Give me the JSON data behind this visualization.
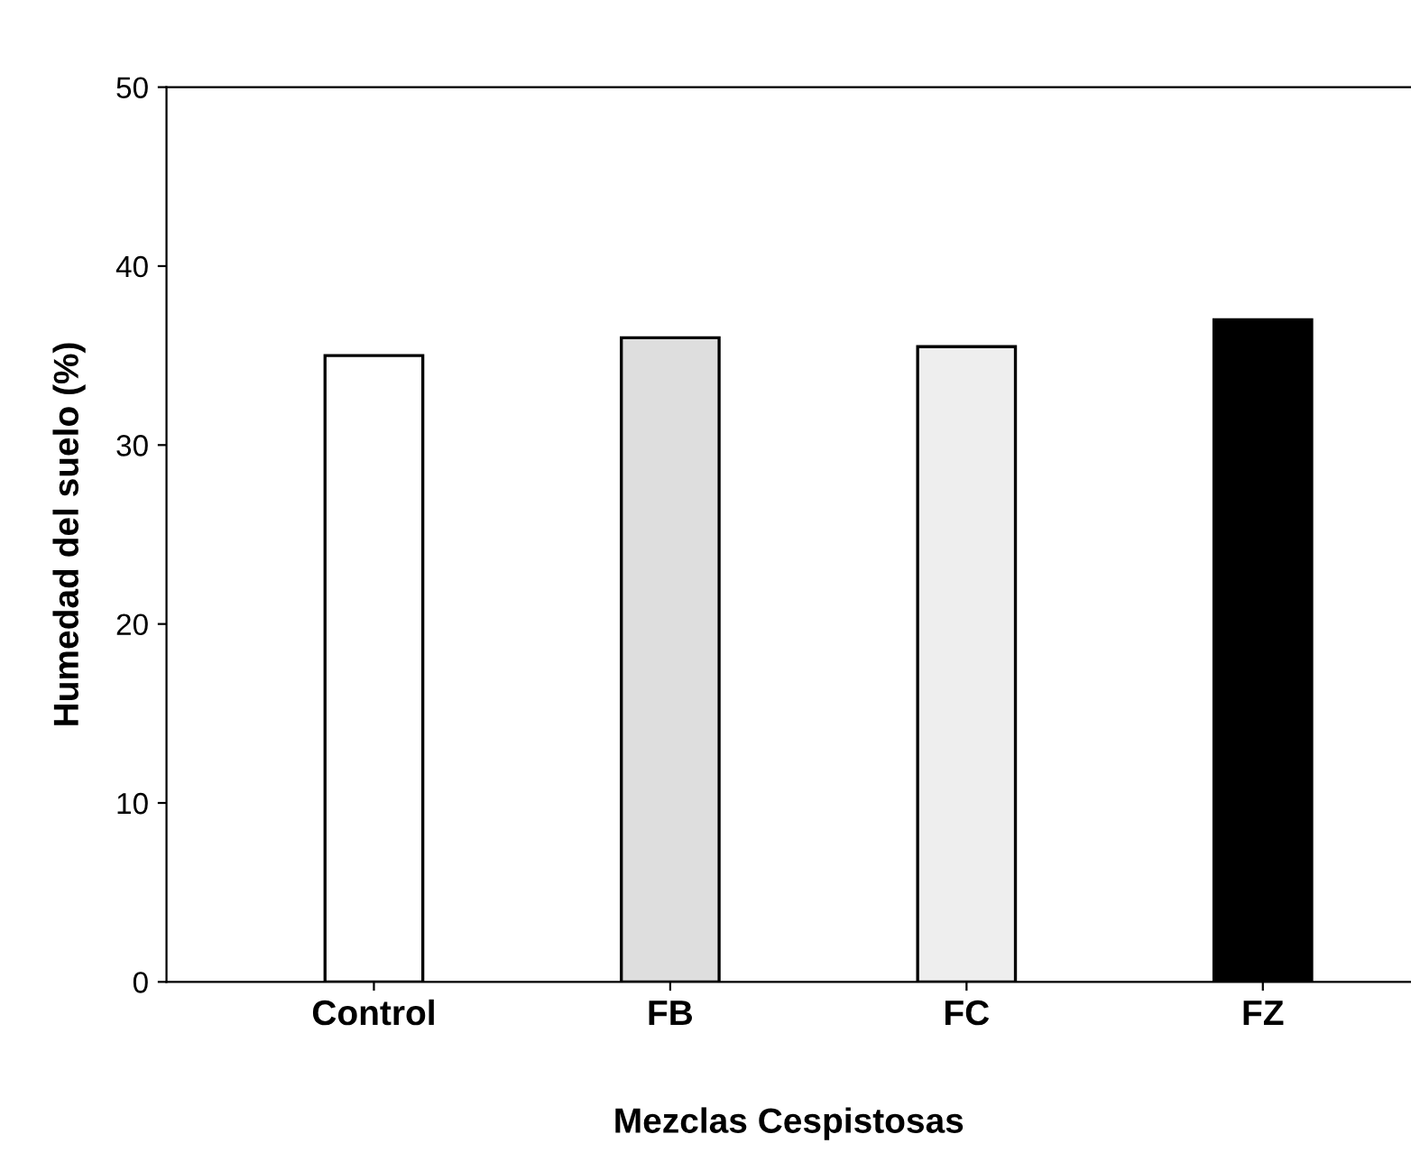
{
  "chart_data": {
    "type": "bar",
    "xlabel": "Mezclas Cespistosas",
    "ylabel": "Humedad del suelo (%)",
    "categories": [
      "Control",
      "FB",
      "FC",
      "FZ"
    ],
    "values": [
      35,
      36,
      35.5,
      37
    ],
    "colors": [
      "#ffffff",
      "#dedede",
      "#eeeeee",
      "#000000"
    ],
    "ylim": [
      0,
      50
    ],
    "yticks": [
      0,
      10,
      20,
      30,
      40,
      50
    ],
    "grid": false,
    "legend": false
  }
}
